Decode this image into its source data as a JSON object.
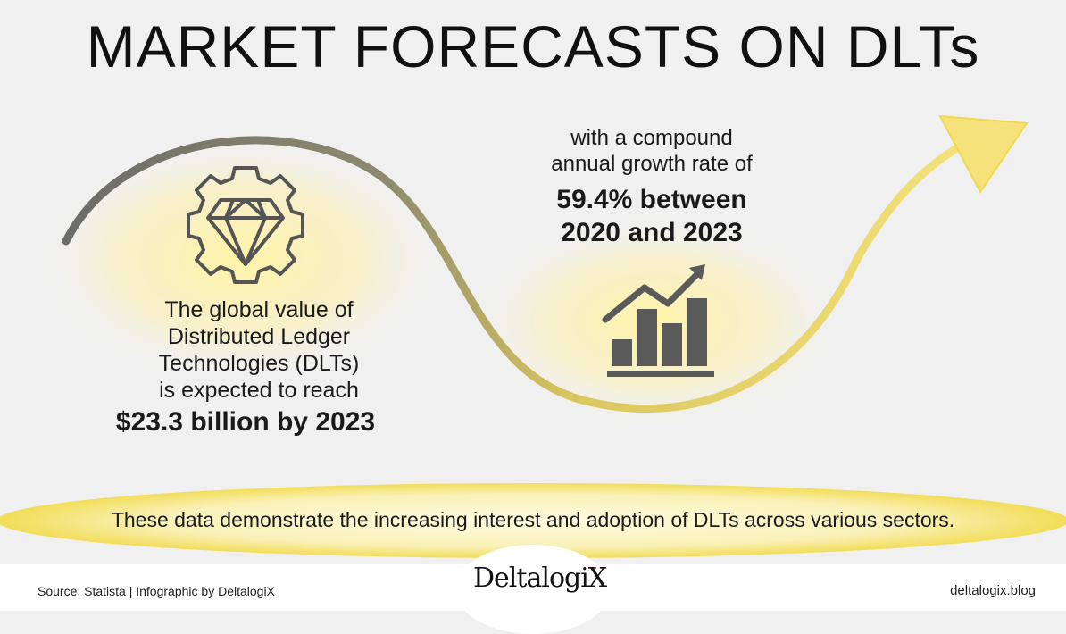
{
  "title": "MARKET FORECASTS ON DLTs",
  "left": {
    "lead": "The global value of\nDistributed Ledger\nTechnologies (DLTs)\nis expected to reach",
    "value": "$23.3 billion by 2023"
  },
  "right": {
    "lead": "with a compound\nannual growth rate of",
    "value": "59.4% between\n2020 and 2023"
  },
  "banner": "These data demonstrate the increasing interest and adoption of DLTs across various sectors.",
  "footer": {
    "source": "Source: Statista | Infographic by DeltalogiX",
    "logo": "DeltalogiX",
    "site": "deltalogix.blog"
  },
  "icons": [
    "gear-diamond-icon",
    "growth-bar-chart-icon"
  ],
  "colors": {
    "background": "#f0f0f0",
    "accent_yellow": "#f3de5c",
    "curve_gray": "#6e6e6a",
    "icon_gray": "#5a5a5a"
  }
}
